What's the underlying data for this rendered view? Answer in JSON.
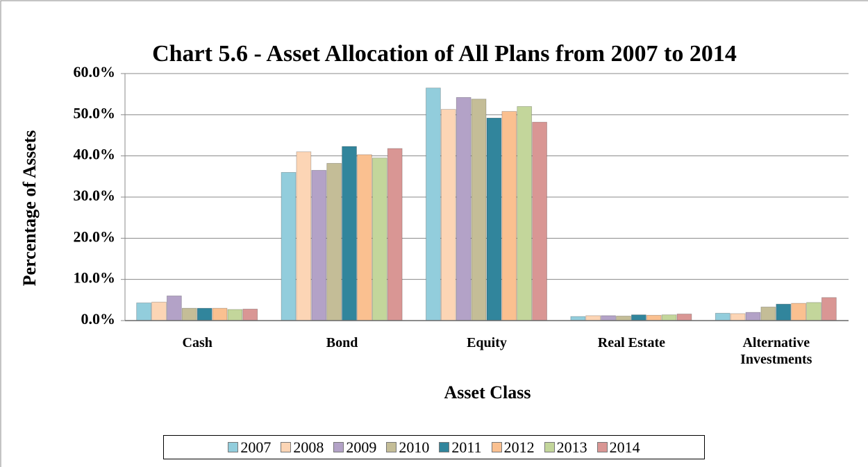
{
  "chart_data": {
    "type": "bar",
    "title": "Chart 5.6 - Asset Allocation of All Plans from 2007 to 2014",
    "x_label": "Asset Class",
    "y_label": "Percentage of Assets",
    "categories": [
      "Cash",
      "Bond",
      "Equity",
      "Real Estate",
      "Alternative Investments"
    ],
    "series": [
      {
        "name": "2007",
        "color": "#92cddc",
        "values": [
          4.3,
          36.0,
          56.5,
          1.0,
          1.8
        ]
      },
      {
        "name": "2008",
        "color": "#fcd5b5",
        "values": [
          4.5,
          41.0,
          51.3,
          1.2,
          1.7
        ]
      },
      {
        "name": "2009",
        "color": "#b3a2c7",
        "values": [
          6.0,
          36.5,
          54.2,
          1.2,
          2.0
        ]
      },
      {
        "name": "2010",
        "color": "#c4bd97",
        "values": [
          3.0,
          38.2,
          53.8,
          1.1,
          3.3
        ]
      },
      {
        "name": "2011",
        "color": "#31859c",
        "values": [
          3.0,
          42.3,
          49.2,
          1.4,
          4.0
        ]
      },
      {
        "name": "2012",
        "color": "#fac090",
        "values": [
          3.0,
          40.3,
          50.8,
          1.3,
          4.2
        ]
      },
      {
        "name": "2013",
        "color": "#c3d69b",
        "values": [
          2.7,
          39.5,
          52.0,
          1.4,
          4.4
        ]
      },
      {
        "name": "2014",
        "color": "#d99694",
        "values": [
          2.8,
          41.8,
          48.2,
          1.6,
          5.6
        ]
      }
    ],
    "ylim": [
      0,
      60
    ],
    "yticks": [
      {
        "value": 0,
        "label": "0.0%"
      },
      {
        "value": 10,
        "label": "10.0%"
      },
      {
        "value": 20,
        "label": "20.0%"
      },
      {
        "value": 30,
        "label": "30.0%"
      },
      {
        "value": 40,
        "label": "40.0%"
      },
      {
        "value": 50,
        "label": "50.0%"
      },
      {
        "value": 60,
        "label": "60.0%"
      }
    ],
    "grid": true,
    "legend": "bottom"
  }
}
